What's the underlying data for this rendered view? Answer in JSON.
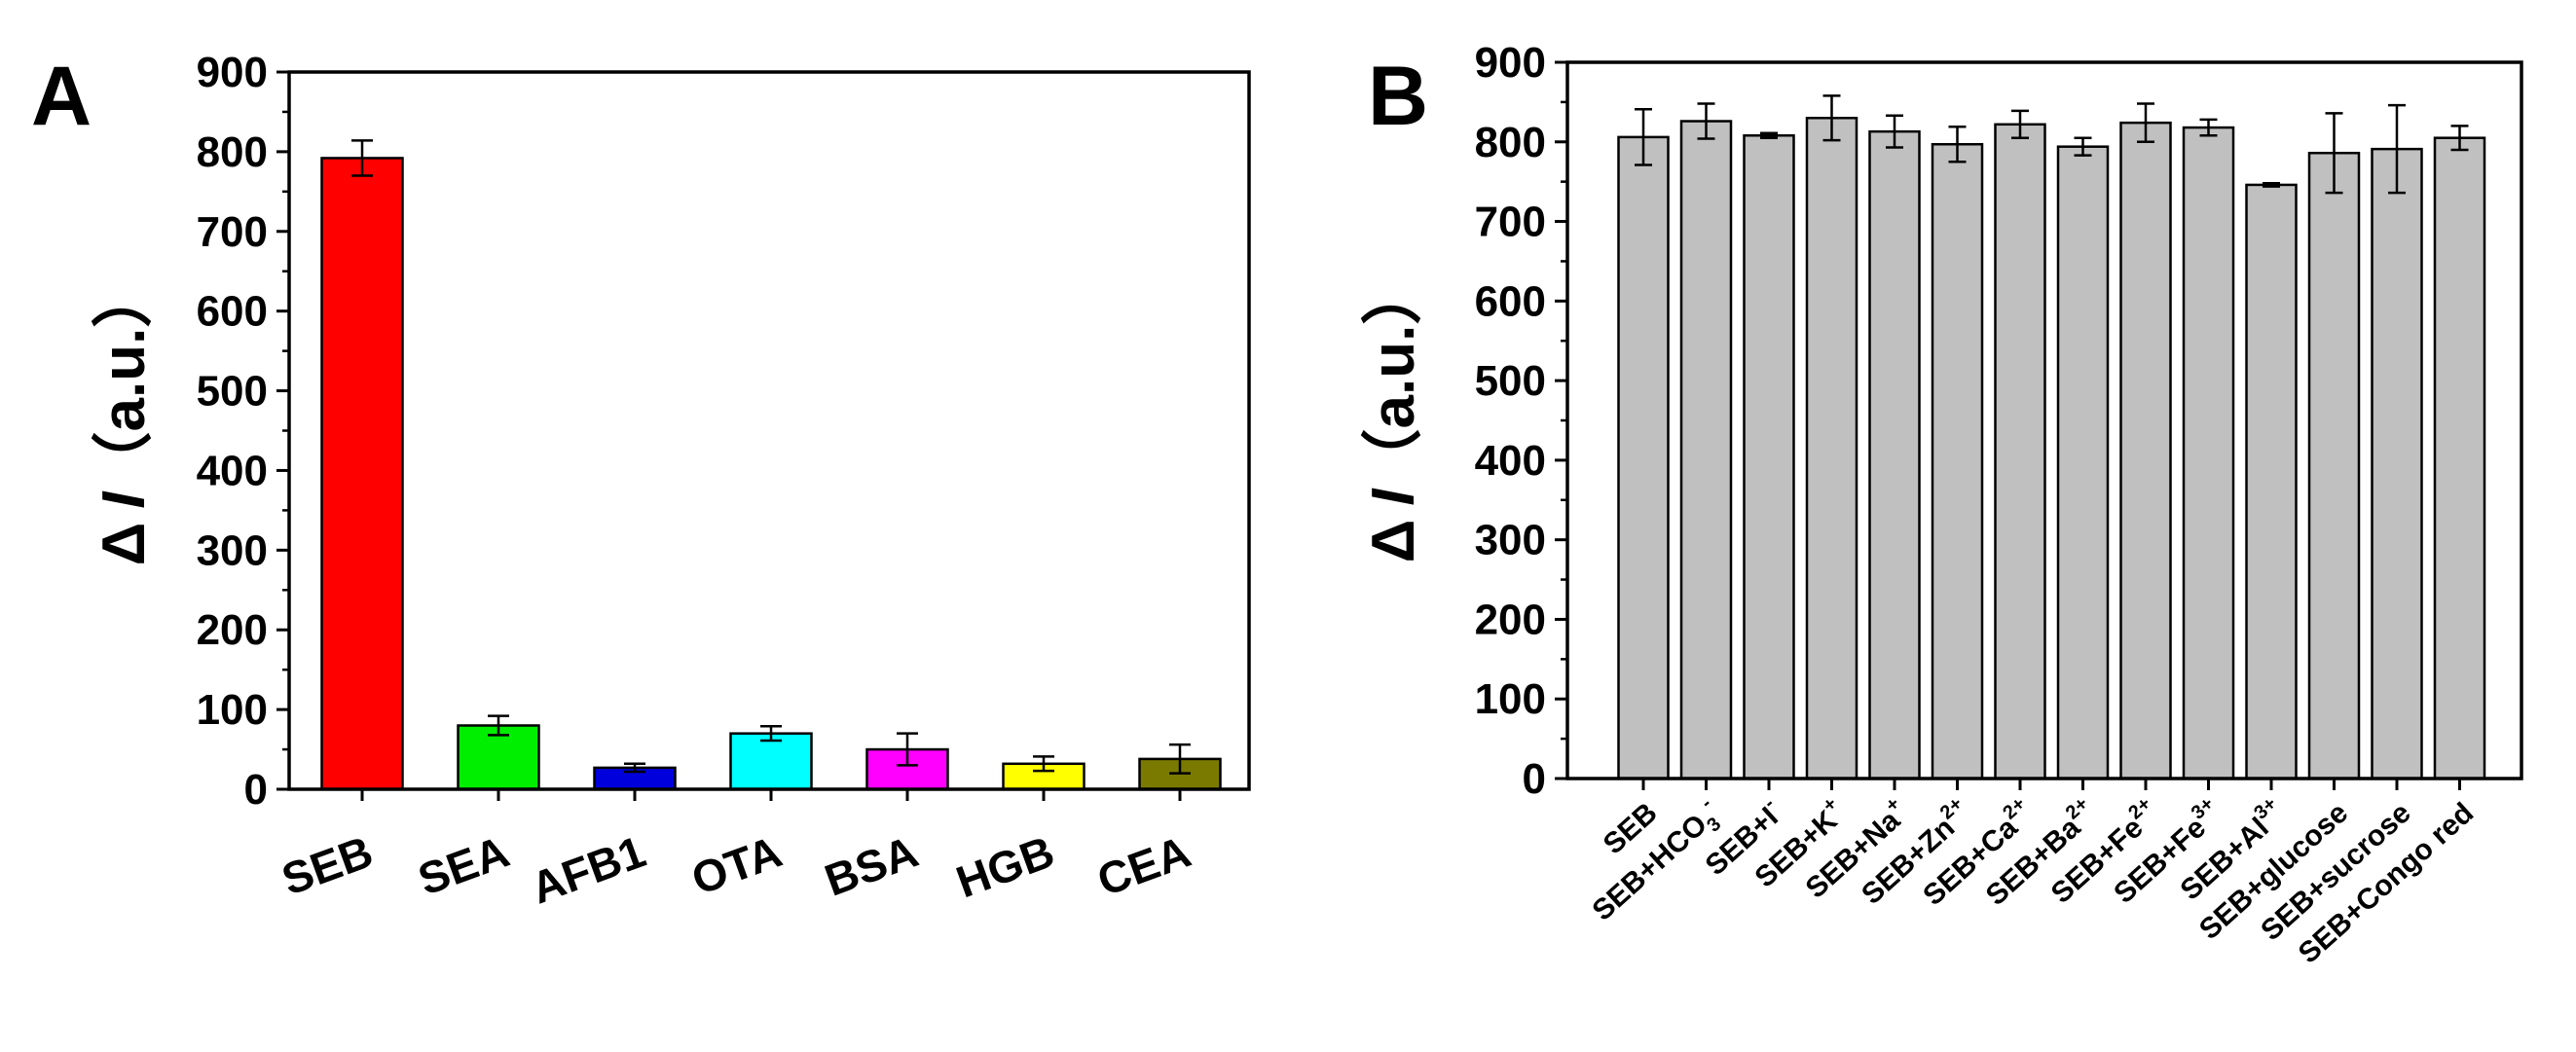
{
  "chart_data": [
    {
      "panel": "A",
      "type": "bar",
      "ylabel_symbol": "Δ",
      "ylabel_italic": "I",
      "ylabel_unit": "（a.u.）",
      "ylim": [
        0,
        900
      ],
      "yticks": [
        0,
        100,
        200,
        300,
        400,
        500,
        600,
        700,
        800,
        900
      ],
      "categories": [
        "SEB",
        "SEA",
        "AFB1",
        "OTA",
        "BSA",
        "HGB",
        "CEA"
      ],
      "values": [
        792,
        80,
        27,
        70,
        50,
        32,
        38
      ],
      "errors": [
        22,
        12,
        5,
        9,
        20,
        9,
        18
      ],
      "colors": [
        "#ff0000",
        "#00ee00",
        "#0000dd",
        "#00ffff",
        "#ff00ff",
        "#ffff00",
        "#7a7a00"
      ]
    },
    {
      "panel": "B",
      "type": "bar",
      "ylabel_symbol": "Δ",
      "ylabel_italic": "I",
      "ylabel_unit": "（a.u.）",
      "ylim": [
        0,
        900
      ],
      "yticks": [
        0,
        100,
        200,
        300,
        400,
        500,
        600,
        700,
        800,
        900
      ],
      "categories": [
        {
          "base": "SEB",
          "sub": "",
          "sup": ""
        },
        {
          "base": "SEB+HCO",
          "sub": "3",
          "sup": "-"
        },
        {
          "base": "SEB+I",
          "sub": "",
          "sup": "-"
        },
        {
          "base": "SEB+K",
          "sub": "",
          "sup": "+"
        },
        {
          "base": "SEB+Na",
          "sub": "",
          "sup": "+"
        },
        {
          "base": "SEB+Zn",
          "sub": "",
          "sup": "2+"
        },
        {
          "base": "SEB+Ca",
          "sub": "",
          "sup": "2+"
        },
        {
          "base": "SEB+Ba",
          "sub": "",
          "sup": "2+"
        },
        {
          "base": "SEB+Fe",
          "sub": "",
          "sup": "2+"
        },
        {
          "base": "SEB+Fe",
          "sub": "",
          "sup": "3+"
        },
        {
          "base": "SEB+Al",
          "sub": "",
          "sup": "3+"
        },
        {
          "base": "SEB+glucose",
          "sub": "",
          "sup": ""
        },
        {
          "base": "SEB+sucrose",
          "sub": "",
          "sup": ""
        },
        {
          "base": "SEB+Congo red",
          "sub": "",
          "sup": ""
        }
      ],
      "values": [
        806,
        826,
        808,
        830,
        813,
        797,
        822,
        794,
        824,
        818,
        746,
        786,
        791,
        805
      ],
      "errors": [
        35,
        22,
        3,
        28,
        20,
        22,
        17,
        11,
        24,
        10,
        2,
        50,
        55,
        15
      ],
      "colors": [
        "#c0c0c0"
      ]
    }
  ]
}
